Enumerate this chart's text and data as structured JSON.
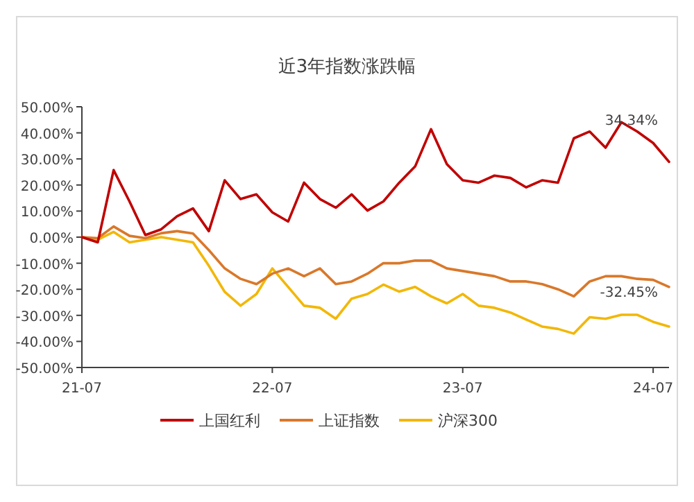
{
  "chart_data": {
    "type": "line",
    "title": "近3年指数涨跌幅",
    "categories": [
      "21-07",
      null,
      null,
      null,
      null,
      null,
      null,
      null,
      null,
      null,
      null,
      null,
      "22-07",
      null,
      null,
      null,
      null,
      null,
      null,
      null,
      null,
      null,
      null,
      null,
      "23-07",
      null,
      null,
      null,
      null,
      null,
      null,
      null,
      null,
      null,
      null,
      null,
      "24-07",
      null
    ],
    "ylim": [
      -50,
      50
    ],
    "yticks": [
      {
        "value": 50,
        "label": "50.00%"
      },
      {
        "value": 40,
        "label": "40.00%"
      },
      {
        "value": 30,
        "label": "30.00%"
      },
      {
        "value": 20,
        "label": "20.00%"
      },
      {
        "value": 10,
        "label": "10.00%"
      },
      {
        "value": 0,
        "label": "0.00%"
      },
      {
        "value": -10,
        "label": "-10.00%"
      },
      {
        "value": -20,
        "label": "-20.00%"
      },
      {
        "value": -30,
        "label": "-30.00%"
      },
      {
        "value": -40,
        "label": "-40.00%"
      },
      {
        "value": -50,
        "label": "-50.00%"
      }
    ],
    "grid": false,
    "legend": "bottom",
    "marker": "none",
    "line_style": "solid",
    "annotations": [
      "34.34%",
      "-32.45%"
    ],
    "series": [
      {
        "name": "上国红利",
        "color": "#c00000",
        "values": [
          0,
          -2,
          25.7,
          13.7,
          0.8,
          3,
          8,
          11,
          2.3,
          21.8,
          14.6,
          16.4,
          9.5,
          6,
          20.9,
          14.6,
          11.3,
          16.4,
          10.2,
          13.7,
          20.9,
          27.1,
          41.4,
          28,
          21.8,
          20.9,
          23.6,
          22.7,
          19.1,
          21.8,
          20.9,
          37.9,
          40.5,
          34.3,
          44.1,
          40.5,
          36.1,
          28.9
        ]
      },
      {
        "name": "上证指数",
        "color": "#d9782a",
        "values": [
          0,
          -0.4,
          4.1,
          0.5,
          -0.4,
          1.5,
          2.3,
          1.4,
          -5,
          -12,
          -16,
          -18,
          -14,
          -12,
          -15,
          -12,
          -18,
          -17,
          -14,
          -10,
          -10,
          -9,
          -9,
          -12,
          -13,
          -14,
          -15,
          -17,
          -17,
          -18,
          -20,
          -22.7,
          -17,
          -15,
          -15,
          -16,
          -16.4,
          -19.1
        ]
      },
      {
        "name": "沪深300",
        "color": "#f2b705",
        "values": [
          0,
          -1,
          2,
          -2,
          -1,
          0,
          -1,
          -2,
          -11,
          -21,
          -26.3,
          -21.8,
          -12,
          -19.1,
          -26.3,
          -27.1,
          -31.3,
          -23.6,
          -21.8,
          -18.2,
          -20.9,
          -19.1,
          -22.7,
          -25.4,
          -21.8,
          -26.3,
          -27.1,
          -28.9,
          -31.6,
          -34.3,
          -35.2,
          -37,
          -30.7,
          -31.3,
          -29.8,
          -29.8,
          -32.5,
          -34.3
        ]
      }
    ]
  }
}
